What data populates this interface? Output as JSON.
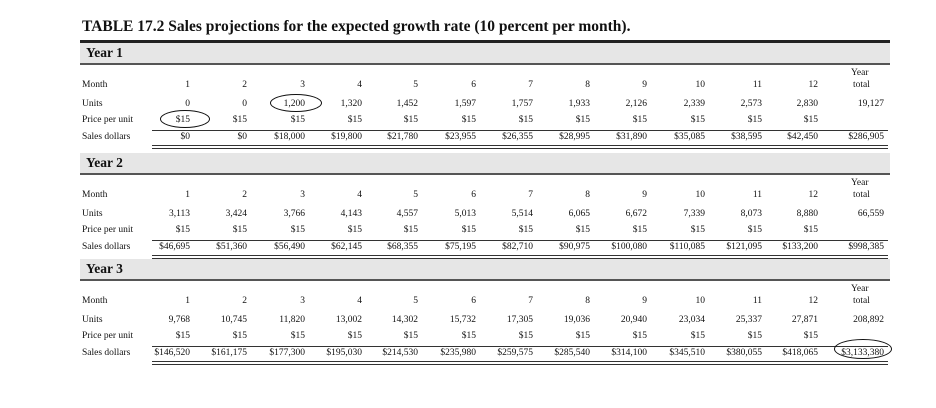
{
  "title": "TABLE 17.2 Sales projections for the expected growth rate (10 percent per month).",
  "row_labels": {
    "month": "Month",
    "units": "Units",
    "price": "Price per unit",
    "sales": "Sales dollars"
  },
  "year_total_label": [
    "Year",
    "total"
  ],
  "years": [
    {
      "label": "Year 1",
      "months": [
        "1",
        "2",
        "3",
        "4",
        "5",
        "6",
        "7",
        "8",
        "9",
        "10",
        "11",
        "12"
      ],
      "units": [
        "0",
        "0",
        "1,200",
        "1,320",
        "1,452",
        "1,597",
        "1,757",
        "1,933",
        "2,126",
        "2,339",
        "2,573",
        "2,830"
      ],
      "units_total": "19,127",
      "price": [
        "$15",
        "$15",
        "$15",
        "$15",
        "$15",
        "$15",
        "$15",
        "$15",
        "$15",
        "$15",
        "$15",
        "$15"
      ],
      "sales": [
        "$0",
        "$0",
        "$18,000",
        "$19,800",
        "$21,780",
        "$23,955",
        "$26,355",
        "$28,995",
        "$31,890",
        "$35,085",
        "$38,595",
        "$42,450"
      ],
      "sales_total": "$286,905"
    },
    {
      "label": "Year 2",
      "months": [
        "1",
        "2",
        "3",
        "4",
        "5",
        "6",
        "7",
        "8",
        "9",
        "10",
        "11",
        "12"
      ],
      "units": [
        "3,113",
        "3,424",
        "3,766",
        "4,143",
        "4,557",
        "5,013",
        "5,514",
        "6,065",
        "6,672",
        "7,339",
        "8,073",
        "8,880"
      ],
      "units_total": "66,559",
      "price": [
        "$15",
        "$15",
        "$15",
        "$15",
        "$15",
        "$15",
        "$15",
        "$15",
        "$15",
        "$15",
        "$15",
        "$15"
      ],
      "sales": [
        "$46,695",
        "$51,360",
        "$56,490",
        "$62,145",
        "$68,355",
        "$75,195",
        "$82,710",
        "$90,975",
        "$100,080",
        "$110,085",
        "$121,095",
        "$133,200"
      ],
      "sales_total": "$998,385"
    },
    {
      "label": "Year 3",
      "months": [
        "1",
        "2",
        "3",
        "4",
        "5",
        "6",
        "7",
        "8",
        "9",
        "10",
        "11",
        "12"
      ],
      "units": [
        "9,768",
        "10,745",
        "11,820",
        "13,002",
        "14,302",
        "15,732",
        "17,305",
        "19,036",
        "20,940",
        "23,034",
        "25,337",
        "27,871"
      ],
      "units_total": "208,892",
      "price": [
        "$15",
        "$15",
        "$15",
        "$15",
        "$15",
        "$15",
        "$15",
        "$15",
        "$15",
        "$15",
        "$15",
        "$15"
      ],
      "sales": [
        "$146,520",
        "$161,175",
        "$177,300",
        "$195,030",
        "$214,530",
        "$235,980",
        "$259,575",
        "$285,540",
        "$314,100",
        "$345,510",
        "$380,055",
        "$418,065"
      ],
      "sales_total": "$3,133,380"
    }
  ],
  "annotations": [
    "Year 1 month 1 price circled",
    "Year 1 month 3 units circled",
    "Year 3 total sales circled"
  ]
}
